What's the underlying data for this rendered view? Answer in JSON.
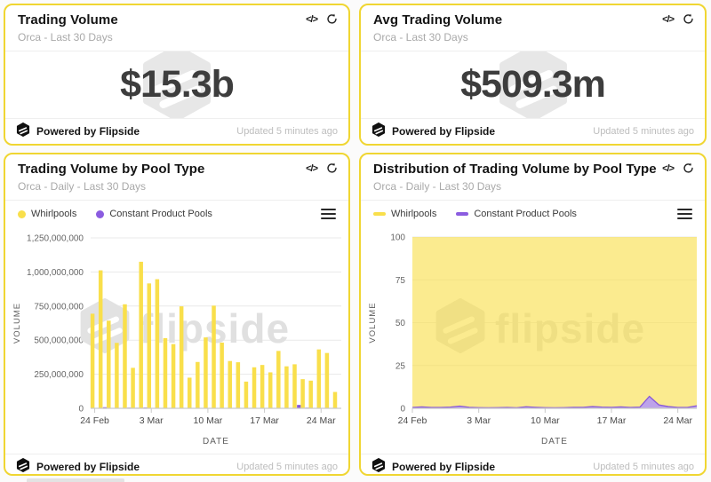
{
  "page": {
    "background": "#FBFBFB"
  },
  "colors": {
    "card_border": "#F0D632",
    "whirlpools": "#F9DF4B",
    "constant_product": "#8757D8",
    "watermark": "#E3E3E3",
    "grid": "#E9E9E9",
    "axis_line": "#C9C9C9",
    "axis_text": "#666666",
    "stat_value_text": "#3D3D3D"
  },
  "icons": {
    "code": "</>",
    "refresh": "refresh-circular-arrow",
    "menu": "hamburger-menu",
    "logo": "flipside-cube"
  },
  "footer": {
    "powered_by": "Powered by Flipside",
    "updated": "Updated 5 minutes ago"
  },
  "stat_cards": [
    {
      "title": "Trading Volume",
      "subtitle": "Orca - Last 30 Days",
      "value": "$15.3b"
    },
    {
      "title": "Avg Trading Volume",
      "subtitle": "Orca - Last 30 Days",
      "value": "$509.3m"
    }
  ],
  "chart_cards": [
    {
      "title": "Trading Volume by Pool Type",
      "subtitle": "Orca - Daily - Last 30 Days",
      "legend": [
        "Whirlpools",
        "Constant Product Pools"
      ]
    },
    {
      "title": "Distribution of Trading Volume by Pool Type",
      "subtitle": "Orca - Daily - Last 30 Days",
      "legend": [
        "Whirlpools",
        "Constant Product Pools"
      ]
    }
  ],
  "chart_data": [
    {
      "type": "bar",
      "title": "Trading Volume by Pool Type",
      "subtitle": "Orca - Daily - Last 30 Days",
      "xlabel": "DATE",
      "ylabel": "VOLUME",
      "ylim": [
        0,
        1250000000
      ],
      "grid": true,
      "legend_position": "top",
      "y_ticks": [
        "0",
        "250,000,000",
        "500,000,000",
        "750,000,000",
        "1,000,000,000",
        "1,250,000,000"
      ],
      "y_tick_values": [
        0,
        250000000,
        500000000,
        750000000,
        1000000000,
        1250000000
      ],
      "x_ticks": [
        "24 Feb",
        "3 Mar",
        "10 Mar",
        "17 Mar",
        "24 Mar"
      ],
      "x_tick_indices": [
        0,
        7,
        14,
        21,
        28
      ],
      "categories": [
        "24 Feb",
        "25 Feb",
        "26 Feb",
        "27 Feb",
        "28 Feb",
        "1 Mar",
        "2 Mar",
        "3 Mar",
        "4 Mar",
        "5 Mar",
        "6 Mar",
        "7 Mar",
        "8 Mar",
        "9 Mar",
        "10 Mar",
        "11 Mar",
        "12 Mar",
        "13 Mar",
        "14 Mar",
        "15 Mar",
        "16 Mar",
        "17 Mar",
        "18 Mar",
        "19 Mar",
        "20 Mar",
        "21 Mar",
        "22 Mar",
        "23 Mar",
        "24 Mar",
        "25 Mar",
        "26 Mar"
      ],
      "series": [
        {
          "name": "Whirlpools",
          "color": "#F9DF4B",
          "values": [
            694000000,
            1012000000,
            643000000,
            480000000,
            763000000,
            297000000,
            1075000000,
            916000000,
            947000000,
            515000000,
            471000000,
            748000000,
            225000000,
            340000000,
            520000000,
            753000000,
            482000000,
            347000000,
            338000000,
            196000000,
            301000000,
            318000000,
            264000000,
            421000000,
            308000000,
            323000000,
            214000000,
            203000000,
            432000000,
            406000000,
            120000000
          ]
        },
        {
          "name": "Constant Product Pools",
          "color": "#8757D8",
          "values": [
            3000000,
            8000000,
            3000000,
            2000000,
            5000000,
            4000000,
            6000000,
            3000000,
            2000000,
            2000000,
            2000000,
            2000000,
            2000000,
            2000000,
            2000000,
            2000000,
            2000000,
            2000000,
            2000000,
            2000000,
            2000000,
            2000000,
            2000000,
            2000000,
            2000000,
            25000000,
            5000000,
            2000000,
            2000000,
            2000000,
            2000000
          ]
        }
      ]
    },
    {
      "type": "area",
      "stacking": "percent",
      "title": "Distribution of Trading Volume by Pool Type",
      "subtitle": "Orca - Daily - Last 30 Days",
      "xlabel": "DATE",
      "ylabel": "VOLUME",
      "ylim": [
        0,
        100
      ],
      "grid": true,
      "legend_position": "top",
      "y_ticks": [
        "0",
        "25",
        "50",
        "75",
        "100"
      ],
      "y_tick_values": [
        0,
        25,
        50,
        75,
        100
      ],
      "x_ticks": [
        "24 Feb",
        "3 Mar",
        "10 Mar",
        "17 Mar",
        "24 Mar"
      ],
      "x_tick_indices": [
        0,
        7,
        14,
        21,
        28
      ],
      "categories": [
        "24 Feb",
        "25 Feb",
        "26 Feb",
        "27 Feb",
        "28 Feb",
        "1 Mar",
        "2 Mar",
        "3 Mar",
        "4 Mar",
        "5 Mar",
        "6 Mar",
        "7 Mar",
        "8 Mar",
        "9 Mar",
        "10 Mar",
        "11 Mar",
        "12 Mar",
        "13 Mar",
        "14 Mar",
        "15 Mar",
        "16 Mar",
        "17 Mar",
        "18 Mar",
        "19 Mar",
        "20 Mar",
        "21 Mar",
        "22 Mar",
        "23 Mar",
        "24 Mar",
        "25 Mar",
        "26 Mar"
      ],
      "series": [
        {
          "name": "Whirlpools",
          "color": "#F9DF4B",
          "values_pct": [
            99.5,
            99.2,
            99.5,
            99.5,
            99.3,
            98.7,
            99.4,
            99.6,
            99.7,
            99.6,
            99.5,
            99.7,
            99.1,
            99.4,
            99.6,
            99.7,
            99.6,
            99.4,
            99.4,
            99.0,
            99.3,
            99.4,
            99.2,
            99.5,
            99.3,
            93.0,
            98.0,
            99.0,
            99.5,
            99.5,
            98.5
          ]
        },
        {
          "name": "Constant Product Pools",
          "color": "#8757D8",
          "values_pct": [
            0.5,
            0.8,
            0.5,
            0.5,
            0.7,
            1.3,
            0.6,
            0.4,
            0.3,
            0.4,
            0.5,
            0.3,
            0.9,
            0.6,
            0.4,
            0.3,
            0.4,
            0.6,
            0.6,
            1.0,
            0.7,
            0.6,
            0.8,
            0.5,
            0.7,
            7.0,
            2.0,
            1.0,
            0.5,
            0.5,
            1.5
          ]
        }
      ]
    }
  ]
}
